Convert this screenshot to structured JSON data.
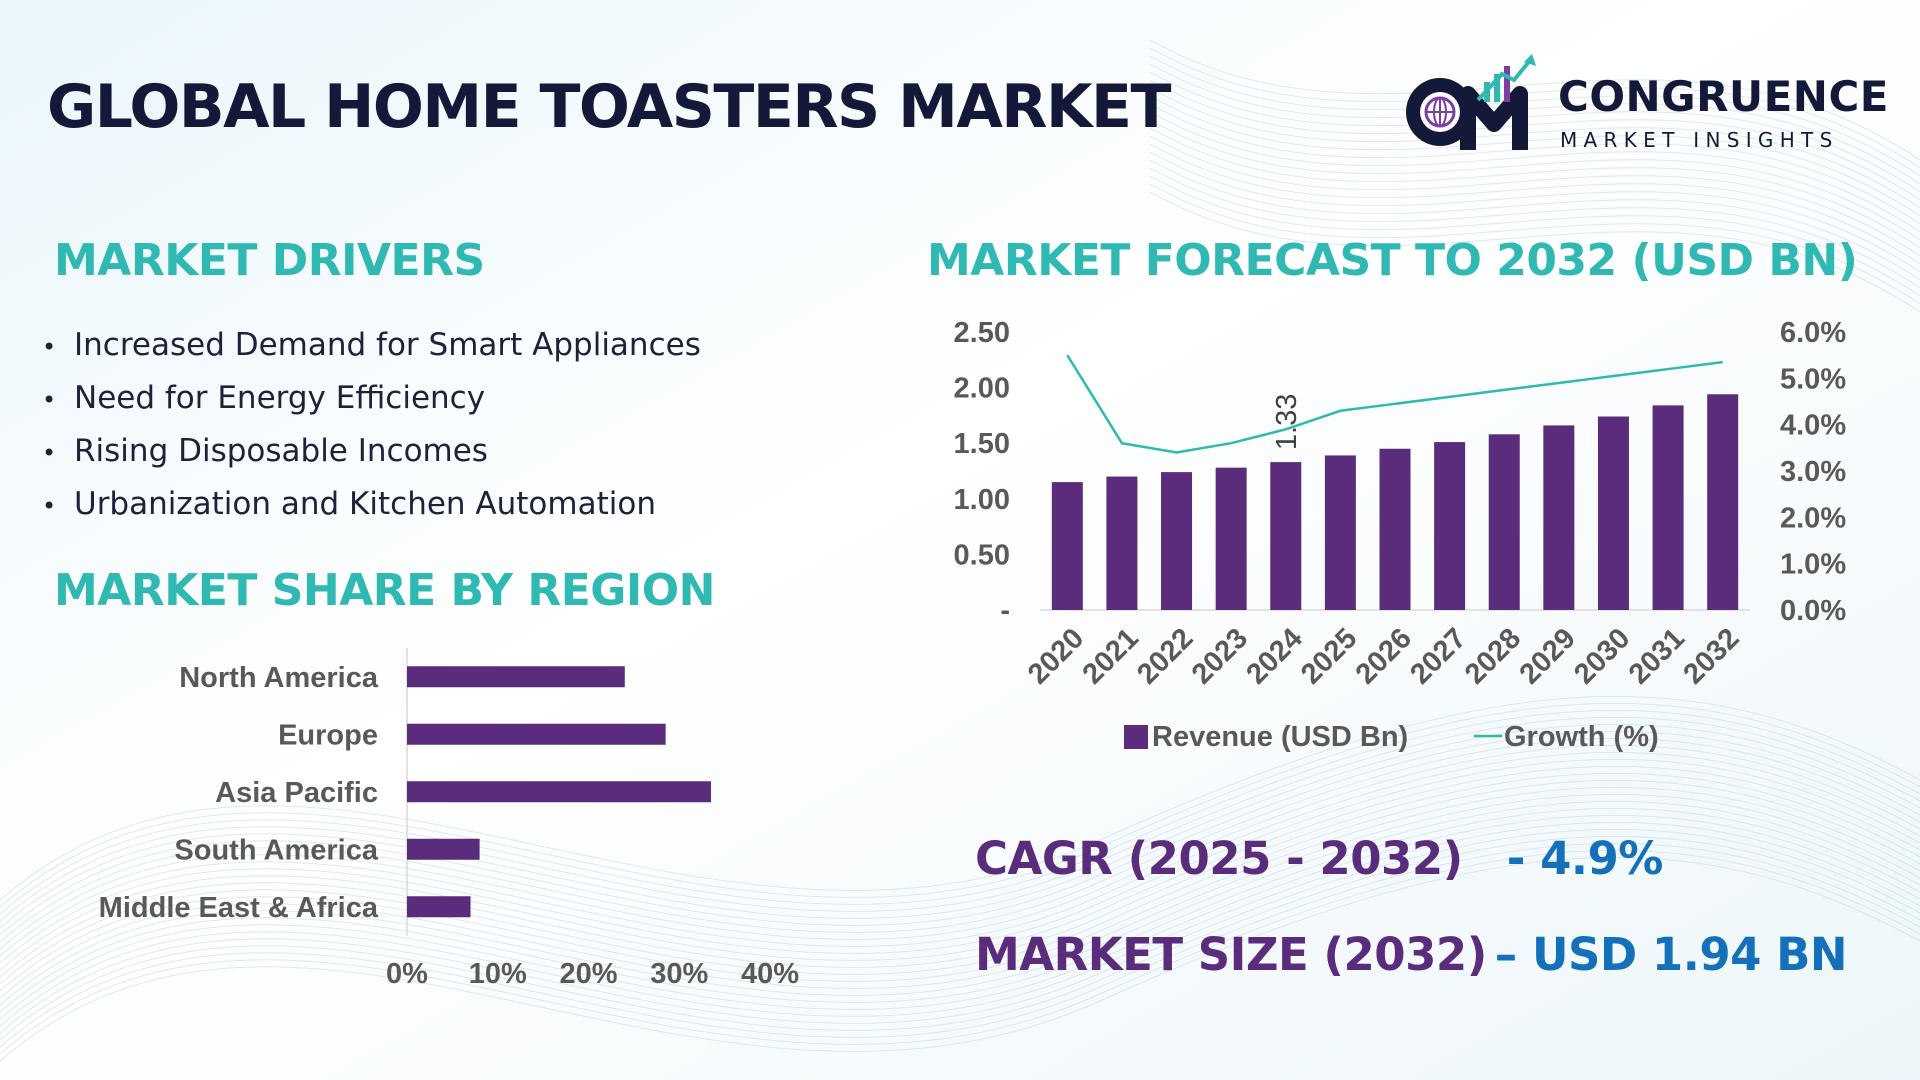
{
  "header": {
    "title": "GLOBAL HOME TOASTERS MARKET",
    "logo_name": "CONGRUENCE",
    "logo_tagline": "MARKET INSIGHTS"
  },
  "drivers": {
    "title": "MARKET DRIVERS",
    "items": [
      "Increased Demand for Smart Appliances",
      "Need for Energy Efficiency",
      "Rising Disposable Incomes",
      "Urbanization and Kitchen Automation"
    ]
  },
  "forecast": {
    "title": "MARKET FORECAST TO 2032 (USD BN)"
  },
  "region": {
    "title": "MARKET SHARE BY REGION"
  },
  "stats": {
    "cagr_label": "CAGR (2025 - 2032)",
    "cagr_value": "- 4.9%",
    "size_label": "MARKET SIZE (2032)",
    "size_value": "– USD 1.94 BN"
  },
  "colors": {
    "bar": "#5b2c7c",
    "line": "#2fb9b2",
    "title_teal": "#2fb9b2",
    "stat_purple": "#5b2c7c",
    "stat_blue": "#1470b8"
  },
  "chart_data": [
    {
      "type": "bar",
      "categories": [
        "2020",
        "2021",
        "2022",
        "2023",
        "2024",
        "2025",
        "2026",
        "2027",
        "2028",
        "2029",
        "2030",
        "2031",
        "2032"
      ],
      "series": [
        {
          "name": "Revenue (USD Bn)",
          "axis": "left",
          "values": [
            1.15,
            1.2,
            1.24,
            1.28,
            1.33,
            1.39,
            1.45,
            1.51,
            1.58,
            1.66,
            1.74,
            1.84,
            1.94
          ]
        },
        {
          "name": "Growth (%)",
          "axis": "right",
          "render": "line",
          "values": [
            5.5,
            3.6,
            3.4,
            3.6,
            3.9,
            4.3,
            4.45,
            4.6,
            4.75,
            4.9,
            5.05,
            5.2,
            5.35
          ]
        }
      ],
      "data_labels": [
        {
          "index": 4,
          "text": "1.33"
        }
      ],
      "ylim": [
        0,
        2.5
      ],
      "yticks": [
        "-",
        "0.50",
        "1.00",
        "1.50",
        "2.00",
        "2.50"
      ],
      "y2lim": [
        0,
        6
      ],
      "y2ticks": [
        "0.0%",
        "1.0%",
        "2.0%",
        "3.0%",
        "4.0%",
        "5.0%",
        "6.0%"
      ],
      "legend": "bottom",
      "grid": false
    },
    {
      "type": "bar",
      "orientation": "horizontal",
      "categories": [
        "North America",
        "Europe",
        "Asia Pacific",
        "South America",
        "Middle East & Africa"
      ],
      "values": [
        24,
        28.5,
        33.5,
        8,
        7
      ],
      "xlim": [
        0,
        40
      ],
      "xticks": [
        "0%",
        "10%",
        "20%",
        "30%",
        "40%"
      ],
      "grid": false
    }
  ]
}
